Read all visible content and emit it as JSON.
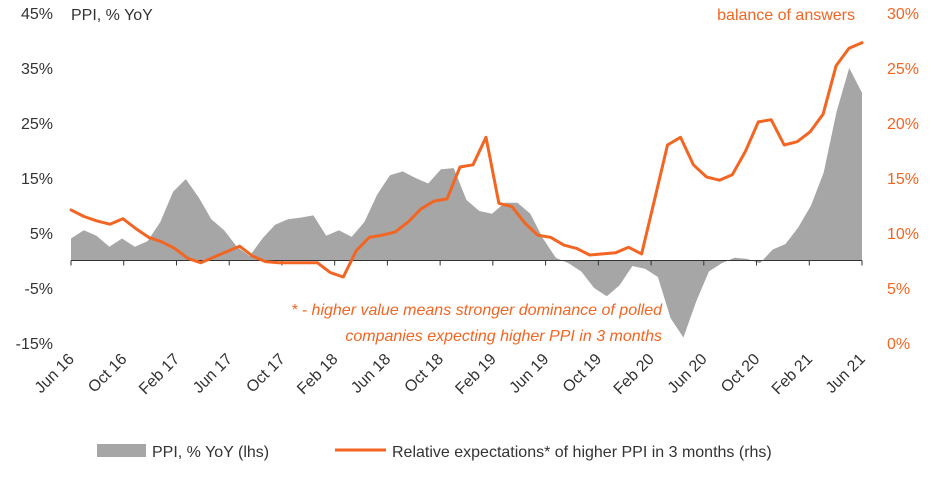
{
  "chart_data": {
    "type": "area+line",
    "title": "",
    "y_left_label": "PPI, % YoY",
    "y_right_label": "balance of answers",
    "y_left_ticks": [
      "45%",
      "35%",
      "25%",
      "15%",
      "5%",
      "-5%",
      "-15%"
    ],
    "y_right_ticks": [
      "30%",
      "25%",
      "20%",
      "15%",
      "10%",
      "5%",
      "0%"
    ],
    "y_left_range": [
      -15,
      45
    ],
    "y_right_range": [
      0,
      30
    ],
    "x_start": "Jun 16",
    "x_end": "Jun 21",
    "x_ticks": [
      "Jun 16",
      "Oct 16",
      "Feb 17",
      "Jun 17",
      "Oct 17",
      "Feb 18",
      "Jun 18",
      "Oct 18",
      "Feb 19",
      "Jun 19",
      "Oct 19",
      "Feb 20",
      "Jun 20",
      "Oct 20",
      "Feb 21",
      "Jun 21"
    ],
    "annotation_line1": "* - higher value means stronger dominance  of polled",
    "annotation_line2": "companies expecting higher PPI in 3 months",
    "series": [
      {
        "name": "PPI, % YoY (lhs)",
        "kind": "area",
        "axis": "left",
        "color": "#a6a6a6",
        "values": [
          4,
          5.5,
          4.5,
          2.5,
          4,
          2.5,
          3.5,
          7,
          12.5,
          14.8,
          11.5,
          7.5,
          5.5,
          2.5,
          0.8,
          4,
          6.5,
          7.5,
          7.8,
          8.2,
          4.5,
          5.5,
          4.3,
          7,
          12,
          15.5,
          16.2,
          15,
          14,
          16.6,
          16.8,
          11,
          9,
          8.5,
          10.5,
          10.5,
          8.5,
          4,
          0.5,
          -0.5,
          -2,
          -5,
          -6.5,
          -4.5,
          -1,
          -1.5,
          -3,
          -10.5,
          -14,
          -7.5,
          -2,
          -0.5,
          0.5,
          0.3,
          -0.5,
          2,
          3,
          6,
          10,
          16,
          27,
          35,
          30.5
        ]
      },
      {
        "name": "Relative expectations* of higher PPI in 3 months (rhs)",
        "kind": "line",
        "axis": "right",
        "color": "#f26522",
        "values": [
          12.1,
          11.5,
          11.1,
          10.8,
          11.3,
          10.4,
          9.6,
          9.2,
          8.6,
          7.7,
          7.3,
          7.8,
          8.3,
          8.8,
          7.9,
          7.4,
          7.3,
          7.3,
          7.3,
          7.3,
          6.4,
          6.0,
          8.4,
          9.6,
          9.8,
          10.1,
          11.0,
          12.2,
          12.9,
          13.1,
          16.0,
          16.2,
          18.7,
          12.7,
          12.4,
          10.9,
          9.8,
          9.6,
          8.9,
          8.6,
          8.0,
          8.1,
          8.2,
          8.7,
          8.1,
          13.0,
          18.0,
          18.7,
          16.2,
          15.1,
          14.8,
          15.3,
          17.4,
          20.1,
          20.3,
          18.0,
          18.3,
          19.2,
          20.8,
          25.2,
          26.8,
          27.3
        ]
      }
    ],
    "legend_position": "bottom"
  }
}
